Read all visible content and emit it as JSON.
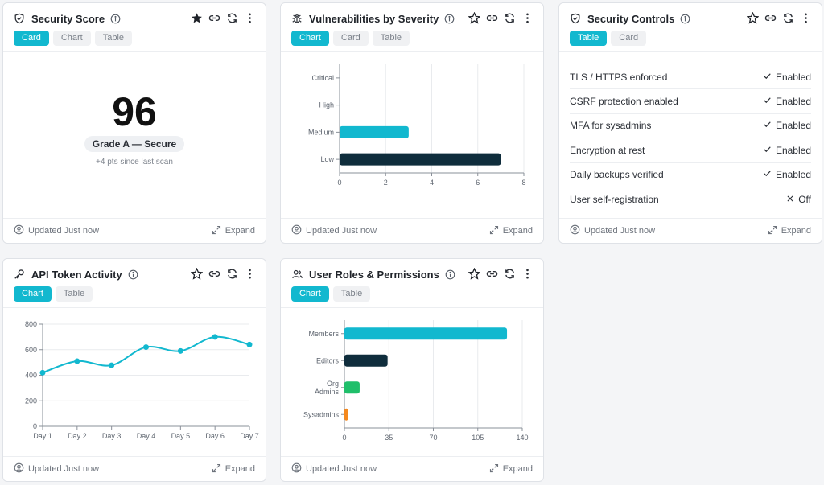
{
  "common": {
    "footer_updated": "Updated Just now",
    "footer_expand": "Expand"
  },
  "cards": {
    "security_score": {
      "title": "Security Score",
      "tabs": [
        "Card",
        "Chart",
        "Table"
      ],
      "active_tab": "Card",
      "starred": true,
      "score": "96",
      "grade": "Grade A — Secure",
      "delta": "+4 pts since last scan"
    },
    "vulnerabilities": {
      "title": "Vulnerabilities by Severity",
      "tabs": [
        "Chart",
        "Card",
        "Table"
      ],
      "active_tab": "Chart"
    },
    "controls": {
      "title": "Security Controls",
      "tabs": [
        "Table",
        "Card"
      ],
      "active_tab": "Table",
      "rows": [
        {
          "label": "TLS / HTTPS enforced",
          "status": "Enabled",
          "on": true
        },
        {
          "label": "CSRF protection enabled",
          "status": "Enabled",
          "on": true
        },
        {
          "label": "MFA for sysadmins",
          "status": "Enabled",
          "on": true
        },
        {
          "label": "Encryption at rest",
          "status": "Enabled",
          "on": true
        },
        {
          "label": "Daily backups verified",
          "status": "Enabled",
          "on": true
        },
        {
          "label": "User self-registration",
          "status": "Off",
          "on": false
        }
      ]
    },
    "api_tokens": {
      "title": "API Token Activity",
      "tabs": [
        "Chart",
        "Table"
      ],
      "active_tab": "Chart"
    },
    "roles": {
      "title": "User Roles & Permissions",
      "tabs": [
        "Chart",
        "Table"
      ],
      "active_tab": "Chart"
    }
  },
  "colors": {
    "accent": "#12b8cf",
    "dark": "#0f2d3c",
    "green": "#1fbf6a",
    "orange": "#f5891e"
  },
  "chart_data": [
    {
      "type": "bar",
      "orientation": "horizontal",
      "categories": [
        "Critical",
        "High",
        "Medium",
        "Low"
      ],
      "values": [
        0,
        0,
        3,
        7
      ],
      "colors": [
        "#12b8cf",
        "#12b8cf",
        "#12b8cf",
        "#0f2d3c"
      ],
      "xlim": [
        0,
        8
      ],
      "xticks": [
        0,
        2,
        4,
        6,
        8
      ],
      "grid": "vertical"
    },
    {
      "type": "line",
      "categories": [
        "Day 1",
        "Day 2",
        "Day 3",
        "Day 4",
        "Day 5",
        "Day 6",
        "Day 7"
      ],
      "values": [
        420,
        510,
        478,
        620,
        590,
        700,
        640
      ],
      "ylim": [
        0,
        800
      ],
      "yticks": [
        0,
        200,
        400,
        600,
        800
      ],
      "color": "#12b8cf",
      "grid": "horizontal"
    },
    {
      "type": "bar",
      "orientation": "horizontal",
      "categories": [
        "Members",
        "Editors",
        "Org Admins",
        "Sysadmins"
      ],
      "values": [
        128,
        34,
        12,
        3
      ],
      "colors": [
        "#12b8cf",
        "#0f2d3c",
        "#1fbf6a",
        "#f5891e"
      ],
      "xlim": [
        0,
        140
      ],
      "xticks": [
        0,
        35,
        70,
        105,
        140
      ],
      "grid": "vertical"
    }
  ]
}
